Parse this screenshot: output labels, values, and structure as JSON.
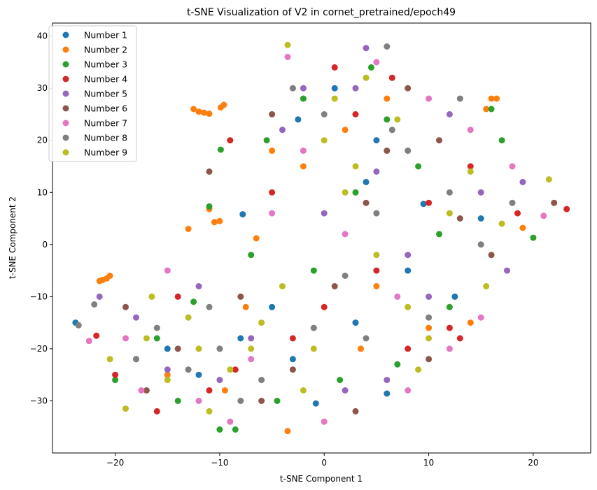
{
  "chart_data": {
    "type": "scatter",
    "title": "t-SNE Visualization of V2 in cornet_pretrained/epoch49",
    "xlabel": "t-SNE Component 1",
    "ylabel": "t-SNE Component 2",
    "xlim": [
      -26,
      25.5
    ],
    "ylim": [
      -40,
      42.5
    ],
    "x_ticks": [
      -20,
      -10,
      0,
      10,
      20
    ],
    "y_ticks": [
      -30,
      -20,
      -10,
      0,
      10,
      20,
      30,
      40
    ],
    "x_tick_labels": [
      "−20",
      "−10",
      "0",
      "10",
      "20"
    ],
    "y_tick_labels": [
      "−30",
      "−20",
      "−10",
      "0",
      "10",
      "20",
      "30",
      "40"
    ],
    "grid": false,
    "legend_position": "top-left",
    "series": [
      {
        "name": "Number 1",
        "color": "#1f77b4",
        "points": [
          [
            -23.8,
            -15.0
          ],
          [
            -7.8,
            5.8
          ],
          [
            -0.8,
            -30.5
          ],
          [
            6.0,
            -28.6
          ],
          [
            9.5,
            7.8
          ],
          [
            -2.5,
            24.0
          ],
          [
            3.0,
            -15.0
          ],
          [
            12.5,
            -10.0
          ],
          [
            -15.0,
            -20.0
          ],
          [
            5.0,
            20.0
          ],
          [
            -5.0,
            -12.0
          ],
          [
            15.0,
            5.0
          ],
          [
            -12.0,
            -25.0
          ],
          [
            1.0,
            30.0
          ],
          [
            8.0,
            -5.0
          ],
          [
            -8.0,
            -18.0
          ],
          [
            4.0,
            12.0
          ],
          [
            -3.0,
            -22.0
          ]
        ]
      },
      {
        "name": "Number 2",
        "color": "#ff7f0e",
        "points": [
          [
            -12.5,
            26.0
          ],
          [
            -12.0,
            25.5
          ],
          [
            -11.5,
            25.3
          ],
          [
            -11.0,
            25.1
          ],
          [
            -20.8,
            -6.5
          ],
          [
            -21.2,
            -6.8
          ],
          [
            -21.5,
            -7.0
          ],
          [
            -20.5,
            -6.0
          ],
          [
            16.0,
            28.0
          ],
          [
            16.5,
            28.0
          ],
          [
            -9.6,
            26.8
          ],
          [
            -9.9,
            26.3
          ],
          [
            -11.0,
            6.8
          ],
          [
            -10.5,
            4.3
          ],
          [
            -10.0,
            4.5
          ],
          [
            -13.0,
            3.0
          ],
          [
            -6.5,
            1.2
          ],
          [
            -3.5,
            -35.8
          ],
          [
            19.0,
            3.2
          ],
          [
            -7.5,
            -12.0
          ],
          [
            5.0,
            -8.0
          ],
          [
            -15.0,
            -25.0
          ],
          [
            2.0,
            22.0
          ],
          [
            10.0,
            -16.0
          ],
          [
            -2.0,
            15.0
          ],
          [
            14.0,
            -15.0
          ],
          [
            -18.0,
            -22.0
          ],
          [
            6.0,
            28.0
          ],
          [
            -9.5,
            -28.0
          ],
          [
            3.5,
            -20.0
          ],
          [
            15.5,
            26.0
          ],
          [
            -5.0,
            18.0
          ]
        ]
      },
      {
        "name": "Number 3",
        "color": "#2ca02c",
        "points": [
          [
            -11.0,
            7.3
          ],
          [
            -9.9,
            18.2
          ],
          [
            -2.0,
            28.0
          ],
          [
            16.0,
            26.0
          ],
          [
            20.0,
            1.3
          ],
          [
            -12.5,
            -11.0
          ],
          [
            -8.5,
            -35.5
          ],
          [
            -10.0,
            -35.5
          ],
          [
            -4.5,
            -30.0
          ],
          [
            -5.5,
            20.0
          ],
          [
            7.0,
            -23.0
          ],
          [
            11.0,
            2.0
          ],
          [
            -16.0,
            -18.0
          ],
          [
            3.0,
            10.0
          ],
          [
            -1.0,
            -5.0
          ],
          [
            12.0,
            -12.0
          ],
          [
            -20.0,
            -26.0
          ],
          [
            6.0,
            24.0
          ],
          [
            17.0,
            20.0
          ],
          [
            -7.0,
            -2.0
          ],
          [
            1.5,
            -26.0
          ],
          [
            9.0,
            15.0
          ],
          [
            -14.0,
            -30.0
          ],
          [
            4.5,
            34.0
          ]
        ]
      },
      {
        "name": "Number 4",
        "color": "#d62728",
        "points": [
          [
            23.2,
            6.8
          ],
          [
            -8.5,
            -24.0
          ],
          [
            -14.0,
            -10.0
          ],
          [
            12.0,
            -16.0
          ],
          [
            -21.8,
            -17.5
          ],
          [
            -20.0,
            -25.0
          ],
          [
            1.0,
            34.0
          ],
          [
            14.0,
            15.0
          ],
          [
            5.0,
            -5.0
          ],
          [
            -5.0,
            10.0
          ],
          [
            8.0,
            -20.0
          ],
          [
            -11.0,
            -28.0
          ],
          [
            3.0,
            25.0
          ],
          [
            18.5,
            6.0
          ],
          [
            -3.0,
            -18.0
          ],
          [
            10.0,
            8.0
          ],
          [
            -16.0,
            -32.0
          ],
          [
            6.5,
            32.0
          ],
          [
            -9.0,
            20.0
          ],
          [
            0.0,
            -12.0
          ],
          [
            13.0,
            -18.0
          ]
        ]
      },
      {
        "name": "Number 5",
        "color": "#9467bd",
        "points": [
          [
            -21.5,
            -10.0
          ],
          [
            4.0,
            37.7
          ],
          [
            -2.0,
            30.0
          ],
          [
            17.5,
            -5.0
          ],
          [
            -15.0,
            -24.0
          ],
          [
            5.0,
            14.0
          ],
          [
            12.0,
            25.0
          ],
          [
            -7.0,
            -18.0
          ],
          [
            8.0,
            -2.0
          ],
          [
            -12.0,
            -8.0
          ],
          [
            2.0,
            -28.0
          ],
          [
            15.0,
            10.0
          ],
          [
            -4.0,
            22.0
          ],
          [
            10.0,
            -10.0
          ],
          [
            -18.0,
            -14.0
          ],
          [
            0.0,
            6.0
          ],
          [
            6.0,
            -26.0
          ],
          [
            19.0,
            12.0
          ],
          [
            -10.0,
            -26.0
          ],
          [
            3.0,
            30.0
          ]
        ]
      },
      {
        "name": "Number 6",
        "color": "#8c564b",
        "points": [
          [
            -19.0,
            -12.0
          ],
          [
            22.0,
            8.0
          ],
          [
            -5.0,
            25.0
          ],
          [
            3.0,
            -32.0
          ],
          [
            10.0,
            -22.0
          ],
          [
            -14.0,
            -20.0
          ],
          [
            6.0,
            18.0
          ],
          [
            -8.0,
            -10.0
          ],
          [
            13.0,
            5.0
          ],
          [
            1.0,
            -8.0
          ],
          [
            -17.0,
            -28.0
          ],
          [
            8.0,
            30.0
          ],
          [
            -3.0,
            -24.0
          ],
          [
            16.0,
            -2.0
          ],
          [
            -11.0,
            14.0
          ],
          [
            4.0,
            8.0
          ],
          [
            -6.0,
            -30.0
          ],
          [
            11.0,
            20.0
          ]
        ]
      },
      {
        "name": "Number 7",
        "color": "#e377c2",
        "points": [
          [
            -22.5,
            -18.5
          ],
          [
            -17.5,
            -28.0
          ],
          [
            -3.5,
            36.0
          ],
          [
            18.0,
            15.0
          ],
          [
            21.0,
            5.5
          ],
          [
            -9.0,
            -34.0
          ],
          [
            -12.0,
            -30.0
          ],
          [
            5.0,
            35.0
          ],
          [
            12.0,
            -20.0
          ],
          [
            -15.0,
            -5.0
          ],
          [
            7.0,
            -10.0
          ],
          [
            -2.0,
            18.0
          ],
          [
            15.0,
            -14.0
          ],
          [
            -7.0,
            -22.0
          ],
          [
            2.0,
            2.0
          ],
          [
            10.0,
            28.0
          ],
          [
            -19.0,
            -18.0
          ],
          [
            0.0,
            -34.0
          ],
          [
            14.0,
            22.0
          ],
          [
            -5.0,
            6.0
          ],
          [
            8.0,
            -28.0
          ]
        ]
      },
      {
        "name": "Number 8",
        "color": "#7f7f7f",
        "points": [
          [
            -23.5,
            -15.5
          ],
          [
            -22.0,
            -11.5
          ],
          [
            6.0,
            38.0
          ],
          [
            -10.0,
            -20.0
          ],
          [
            0.0,
            25.0
          ],
          [
            12.0,
            10.0
          ],
          [
            -16.0,
            -16.0
          ],
          [
            4.0,
            -18.0
          ],
          [
            -6.0,
            -26.0
          ],
          [
            8.0,
            18.0
          ],
          [
            -13.0,
            -24.0
          ],
          [
            2.0,
            -6.0
          ],
          [
            15.0,
            0.0
          ],
          [
            -3.0,
            30.0
          ],
          [
            10.0,
            -14.0
          ],
          [
            -18.0,
            -22.0
          ],
          [
            5.0,
            6.0
          ],
          [
            -8.0,
            -30.0
          ],
          [
            13.0,
            28.0
          ],
          [
            -1.0,
            -16.0
          ],
          [
            18.0,
            8.0
          ],
          [
            -11.0,
            -12.0
          ],
          [
            6.5,
            22.0
          ]
        ]
      },
      {
        "name": "Number 9",
        "color": "#bcbd22",
        "points": [
          [
            -3.5,
            38.3
          ],
          [
            -19.0,
            -31.5
          ],
          [
            -20.5,
            -22.0
          ],
          [
            -12.0,
            -20.0
          ],
          [
            3.0,
            15.0
          ],
          [
            -6.0,
            -15.0
          ],
          [
            8.0,
            -12.0
          ],
          [
            -15.0,
            -26.0
          ],
          [
            1.0,
            28.0
          ],
          [
            12.0,
            6.0
          ],
          [
            -9.0,
            -24.0
          ],
          [
            5.0,
            -2.0
          ],
          [
            -2.0,
            -28.0
          ],
          [
            14.0,
            14.0
          ],
          [
            -17.0,
            -18.0
          ],
          [
            7.0,
            24.0
          ],
          [
            -4.0,
            -8.0
          ],
          [
            10.0,
            -18.0
          ],
          [
            -11.0,
            -32.0
          ],
          [
            0.0,
            20.0
          ],
          [
            17.0,
            4.0
          ],
          [
            -7.0,
            -20.0
          ],
          [
            4.0,
            32.0
          ],
          [
            -13.0,
            -14.0
          ],
          [
            2.0,
            10.0
          ],
          [
            9.0,
            -24.0
          ],
          [
            -1.0,
            -20.0
          ],
          [
            15.5,
            -8.0
          ],
          [
            21.5,
            12.5
          ],
          [
            -16.5,
            -10.0
          ]
        ]
      }
    ]
  }
}
